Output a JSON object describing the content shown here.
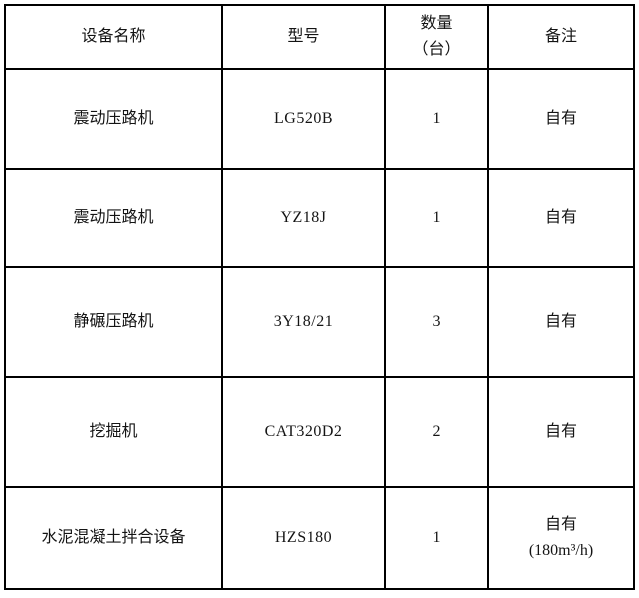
{
  "page": {
    "background_color": "#ffffff",
    "border_color": "#000000",
    "text_color": "#141414"
  },
  "table": {
    "headers": {
      "equipment_name": "设备名称",
      "model": "型号",
      "quantity_line1": "数量",
      "quantity_line2": "（台）",
      "remarks": "备注"
    },
    "rows": [
      {
        "name": "震动压路机",
        "model": "LG520B",
        "quantity": "1",
        "remark": "自有"
      },
      {
        "name": "震动压路机",
        "model": "YZ18J",
        "quantity": "1",
        "remark": "自有"
      },
      {
        "name": "静碾压路机",
        "model": "3Y18/21",
        "quantity": "3",
        "remark": "自有"
      },
      {
        "name": "挖掘机",
        "model": "CAT320D2",
        "quantity": "2",
        "remark": "自有"
      },
      {
        "name": "水泥混凝土拌合设备",
        "model": "HZS180",
        "quantity": "1",
        "remark": "自有",
        "remark_line2": "(180m³/h)"
      }
    ]
  }
}
